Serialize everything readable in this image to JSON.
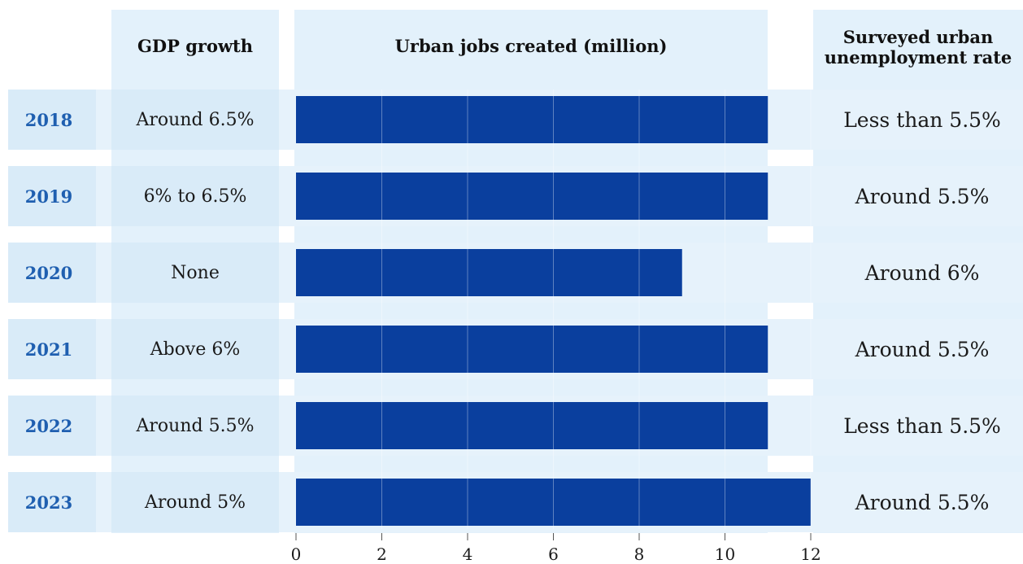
{
  "headers": {
    "gdp": "GDP growth",
    "jobs": "Urban jobs created (million)",
    "unemployment": "Surveyed urban\nunemployment rate"
  },
  "rows": [
    {
      "year": "2018",
      "gdp": "Around 6.5%",
      "unemployment": "Less than 5.5%"
    },
    {
      "year": "2019",
      "gdp": "6% to 6.5%",
      "unemployment": "Around 5.5%"
    },
    {
      "year": "2020",
      "gdp": "None",
      "unemployment": "Around 6%"
    },
    {
      "year": "2021",
      "gdp": "Above 6%",
      "unemployment": "Around 5.5%"
    },
    {
      "year": "2022",
      "gdp": "Around 5.5%",
      "unemployment": "Less than 5.5%"
    },
    {
      "year": "2023",
      "gdp": "Around 5%",
      "unemployment": "Around 5.5%"
    }
  ],
  "colors": {
    "bar": "#0a3f9e",
    "row_band": "#e6f2fb",
    "column_band": "#e0f0fb",
    "year_text": "#1f5fb0"
  },
  "chart_data": {
    "type": "bar",
    "orientation": "horizontal",
    "title": "Urban jobs created (million)",
    "categories": [
      "2018",
      "2019",
      "2020",
      "2021",
      "2022",
      "2023"
    ],
    "values": [
      11,
      11,
      9,
      11,
      11,
      12
    ],
    "xlim": [
      0,
      12
    ],
    "xticks": [
      0,
      2,
      4,
      6,
      8,
      10,
      12
    ],
    "grid": true
  }
}
